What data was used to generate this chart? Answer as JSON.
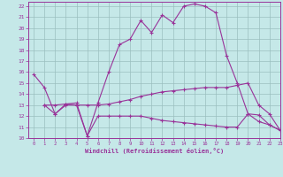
{
  "xlabel": "Windchill (Refroidissement éolien,°C)",
  "ylabel": "",
  "xlim": [
    -0.5,
    23
  ],
  "ylim": [
    10,
    22.4
  ],
  "xticks": [
    0,
    1,
    2,
    3,
    4,
    5,
    6,
    7,
    8,
    9,
    10,
    11,
    12,
    13,
    14,
    15,
    16,
    17,
    18,
    19,
    20,
    21,
    22,
    23
  ],
  "yticks": [
    10,
    11,
    12,
    13,
    14,
    15,
    16,
    17,
    18,
    19,
    20,
    21,
    22
  ],
  "bg_color": "#c5e8e8",
  "line_color": "#993399",
  "grid_color": "#9bbfbf",
  "line1_x": [
    0,
    1,
    2,
    3,
    4,
    5,
    6,
    7,
    8,
    9,
    10,
    11,
    12,
    13,
    14,
    15,
    16,
    17,
    18,
    19,
    20,
    21,
    22,
    23
  ],
  "line1_y": [
    15.8,
    14.6,
    12.2,
    13.1,
    13.2,
    10.2,
    13.2,
    16.0,
    18.5,
    19.0,
    20.7,
    19.6,
    21.2,
    20.5,
    22.0,
    22.2,
    22.0,
    21.4,
    17.5,
    15.0,
    12.2,
    11.5,
    11.2,
    10.7
  ],
  "line2_x": [
    1,
    2,
    3,
    4,
    5,
    6,
    7,
    8,
    9,
    10,
    11,
    12,
    13,
    14,
    15,
    16,
    17,
    18,
    19,
    20,
    21,
    22,
    23
  ],
  "line2_y": [
    13.0,
    13.0,
    13.1,
    13.0,
    13.0,
    13.0,
    13.1,
    13.3,
    13.5,
    13.8,
    14.0,
    14.2,
    14.3,
    14.4,
    14.5,
    14.6,
    14.6,
    14.6,
    14.8,
    15.0,
    13.0,
    12.2,
    10.7
  ],
  "line3_x": [
    1,
    2,
    3,
    4,
    5,
    6,
    7,
    8,
    9,
    10,
    11,
    12,
    13,
    14,
    15,
    16,
    17,
    18,
    19,
    20,
    21,
    22,
    23
  ],
  "line3_y": [
    13.0,
    12.2,
    13.0,
    13.0,
    10.2,
    12.0,
    12.0,
    12.0,
    12.0,
    12.0,
    11.8,
    11.6,
    11.5,
    11.4,
    11.3,
    11.2,
    11.1,
    11.0,
    11.0,
    12.2,
    12.1,
    11.2,
    10.7
  ]
}
